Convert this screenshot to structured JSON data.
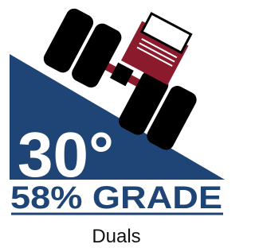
{
  "badge": {
    "angle": "30°",
    "grade": "58% GRADE",
    "label": "Duals"
  }
}
